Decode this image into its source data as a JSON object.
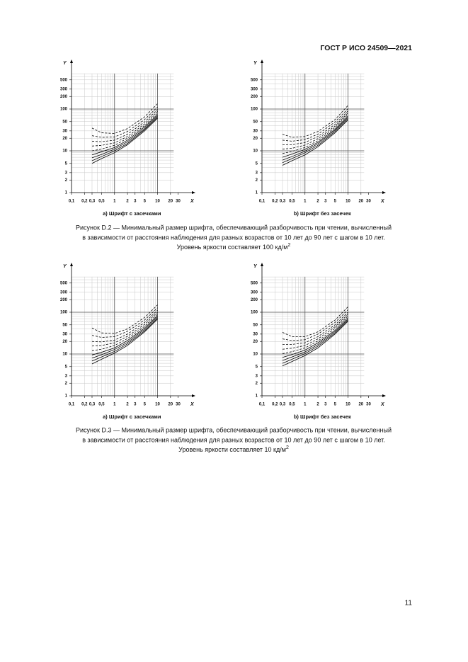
{
  "header": {
    "title": "ГОСТ Р ИСО 24509—2021"
  },
  "chart_data": [
    {
      "type": "line",
      "subtitle": "a) Шрифт с засечками",
      "xlabel": "X",
      "ylabel": "Y",
      "log_x": true,
      "log_y": true,
      "color": "#000000",
      "xlim": [
        0.1,
        50
      ],
      "ylim": [
        1,
        1000
      ],
      "xticks": [
        {
          "value": 0.1,
          "label": "0,1"
        },
        {
          "value": 0.2,
          "label": "0,2"
        },
        {
          "value": 0.3,
          "label": "0,3"
        },
        {
          "value": 0.5,
          "label": "0,5"
        },
        1,
        2,
        3,
        5,
        10,
        20,
        30
      ],
      "yticks": [
        1,
        2,
        3,
        5,
        10,
        20,
        30,
        50,
        100,
        200,
        300,
        500
      ],
      "xgrid_major": [
        1,
        10
      ],
      "ygrid_major": [
        10,
        100
      ],
      "x": [
        0.3,
        0.5,
        1,
        2,
        5,
        10
      ],
      "series": [
        {
          "dash": false,
          "values": [
            5,
            6.5,
            9,
            14,
            30,
            60
          ]
        },
        {
          "dash": false,
          "values": [
            5.8,
            7.3,
            10,
            15,
            32,
            64
          ]
        },
        {
          "dash": false,
          "values": [
            6.8,
            8.2,
            11,
            16.5,
            34,
            68
          ]
        },
        {
          "dash": false,
          "values": [
            8,
            9.5,
            12,
            18,
            37,
            73
          ]
        },
        {
          "dash": true,
          "values": [
            10,
            11,
            13.5,
            20,
            40,
            80
          ]
        },
        {
          "dash": true,
          "values": [
            13,
            13.5,
            15.5,
            22,
            44,
            88
          ]
        },
        {
          "dash": true,
          "values": [
            17,
            16.5,
            18,
            25,
            49,
            98
          ]
        },
        {
          "dash": true,
          "values": [
            23,
            21,
            21.5,
            29,
            56,
            112
          ]
        },
        {
          "dash": true,
          "values": [
            35,
            27,
            26,
            34,
            65,
            135
          ]
        }
      ]
    },
    {
      "type": "line",
      "subtitle": "b) Шрифт без засечек",
      "xlabel": "X",
      "ylabel": "Y",
      "log_x": true,
      "log_y": true,
      "color": "#000000",
      "xlim": [
        0.1,
        50
      ],
      "ylim": [
        1,
        1000
      ],
      "xticks": [
        {
          "value": 0.1,
          "label": "0,1"
        },
        {
          "value": 0.2,
          "label": "0,2"
        },
        {
          "value": 0.3,
          "label": "0,3"
        },
        {
          "value": 0.5,
          "label": "0,5"
        },
        1,
        2,
        3,
        5,
        10,
        20,
        30
      ],
      "yticks": [
        1,
        2,
        3,
        5,
        10,
        20,
        30,
        50,
        100,
        200,
        300,
        500
      ],
      "xgrid_major": [
        1,
        10
      ],
      "ygrid_major": [
        10,
        100
      ],
      "x": [
        0.3,
        0.5,
        1,
        2,
        5,
        10
      ],
      "series": [
        {
          "dash": false,
          "values": [
            4.5,
            5.8,
            8,
            12.5,
            27,
            55
          ]
        },
        {
          "dash": false,
          "values": [
            5.2,
            6.5,
            9,
            13.5,
            29,
            59
          ]
        },
        {
          "dash": false,
          "values": [
            6,
            7.3,
            9.8,
            14.8,
            31,
            63
          ]
        },
        {
          "dash": false,
          "values": [
            7,
            8.4,
            10.8,
            16,
            33,
            68
          ]
        },
        {
          "dash": true,
          "values": [
            8.6,
            9.7,
            12,
            17.5,
            36,
            74
          ]
        },
        {
          "dash": true,
          "values": [
            11,
            11.5,
            13.7,
            19.5,
            39,
            81
          ]
        },
        {
          "dash": true,
          "values": [
            14,
            14,
            15.8,
            22,
            43,
            90
          ]
        },
        {
          "dash": true,
          "values": [
            18,
            17,
            18.5,
            25,
            49,
            102
          ]
        },
        {
          "dash": true,
          "values": [
            25,
            21,
            22,
            29,
            56,
            122
          ]
        }
      ]
    },
    {
      "type": "line",
      "subtitle": "a) Шрифт с засечками",
      "xlabel": "X",
      "ylabel": "Y",
      "log_x": true,
      "log_y": true,
      "color": "#000000",
      "xlim": [
        0.1,
        50
      ],
      "ylim": [
        1,
        1000
      ],
      "xticks": [
        {
          "value": 0.1,
          "label": "0,1"
        },
        {
          "value": 0.2,
          "label": "0,2"
        },
        {
          "value": 0.3,
          "label": "0,3"
        },
        {
          "value": 0.5,
          "label": "0,5"
        },
        1,
        2,
        3,
        5,
        10,
        20,
        30
      ],
      "yticks": [
        1,
        2,
        3,
        5,
        10,
        20,
        30,
        50,
        100,
        200,
        300,
        500
      ],
      "xgrid_major": [
        1,
        10
      ],
      "ygrid_major": [
        10,
        100
      ],
      "x": [
        0.3,
        0.5,
        1,
        2,
        5,
        10
      ],
      "series": [
        {
          "dash": false,
          "values": [
            5.8,
            7.5,
            10.5,
            16,
            34,
            68
          ]
        },
        {
          "dash": false,
          "values": [
            6.8,
            8.5,
            11.5,
            17.5,
            36,
            72
          ]
        },
        {
          "dash": false,
          "values": [
            8,
            9.6,
            12.8,
            19,
            39,
            77
          ]
        },
        {
          "dash": false,
          "values": [
            9.5,
            11,
            14,
            21,
            42,
            83
          ]
        },
        {
          "dash": true,
          "values": [
            12,
            13,
            16,
            23.5,
            46,
            90
          ]
        },
        {
          "dash": true,
          "values": [
            15.5,
            16,
            18.5,
            26.5,
            51,
            100
          ]
        },
        {
          "dash": true,
          "values": [
            20,
            19.5,
            21.5,
            30,
            57,
            112
          ]
        },
        {
          "dash": true,
          "values": [
            28,
            25,
            26,
            35,
            65,
            128
          ]
        },
        {
          "dash": true,
          "values": [
            42,
            32,
            31,
            40,
            75,
            150
          ]
        }
      ]
    },
    {
      "type": "line",
      "subtitle": "b) Шрифт без засечек",
      "xlabel": "X",
      "ylabel": "Y",
      "log_x": true,
      "log_y": true,
      "color": "#000000",
      "xlim": [
        0.1,
        50
      ],
      "ylim": [
        1,
        1000
      ],
      "xticks": [
        {
          "value": 0.1,
          "label": "0,1"
        },
        {
          "value": 0.2,
          "label": "0,2"
        },
        {
          "value": 0.3,
          "label": "0,3"
        },
        {
          "value": 0.5,
          "label": "0,5"
        },
        1,
        2,
        3,
        5,
        10,
        20,
        30
      ],
      "yticks": [
        1,
        2,
        3,
        5,
        10,
        20,
        30,
        50,
        100,
        200,
        300,
        500
      ],
      "xgrid_major": [
        1,
        10
      ],
      "ygrid_major": [
        10,
        100
      ],
      "x": [
        0.3,
        0.5,
        1,
        2,
        5,
        10
      ],
      "series": [
        {
          "dash": false,
          "values": [
            5.2,
            6.6,
            9.2,
            14,
            30,
            61
          ]
        },
        {
          "dash": false,
          "values": [
            6,
            7.5,
            10.2,
            15.4,
            32,
            65
          ]
        },
        {
          "dash": false,
          "values": [
            7,
            8.5,
            11.2,
            16.8,
            34.5,
            69
          ]
        },
        {
          "dash": false,
          "values": [
            8.3,
            9.7,
            12.4,
            18.5,
            37,
            75
          ]
        },
        {
          "dash": true,
          "values": [
            10.2,
            11.4,
            14,
            20.5,
            41,
            82
          ]
        },
        {
          "dash": true,
          "values": [
            13,
            13.8,
            16,
            23,
            45,
            90
          ]
        },
        {
          "dash": true,
          "values": [
            17,
            17,
            18.6,
            26,
            50,
            100
          ]
        },
        {
          "dash": true,
          "values": [
            23,
            21,
            22,
            30,
            57,
            115
          ]
        },
        {
          "dash": true,
          "values": [
            33,
            26,
            26,
            34,
            65,
            135
          ]
        }
      ]
    }
  ],
  "figures": [
    {
      "caption": [
        "Рисунок D.2 — Минимальный размер шрифта, обеспечивающий разборчивость при чтении, вычисленный",
        "в зависимости от расстояния наблюдения для разных возрастов от 10 лет до 90 лет с шагом в 10 лет.",
        "Уровень яркости составляет 100 кд/м"
      ],
      "caption_sup": "2"
    },
    {
      "caption": [
        "Рисунок D.3 — Минимальный размер шрифта, обеспечивающий разборчивость при чтении, вычисленный",
        "в зависимости от расстояния наблюдения для разных возрастов от 10 лет до 90 лет с шагом в 10 лет.",
        "Уровень яркости составляет 10 кд/м"
      ],
      "caption_sup": "2"
    }
  ],
  "page_number": "11"
}
